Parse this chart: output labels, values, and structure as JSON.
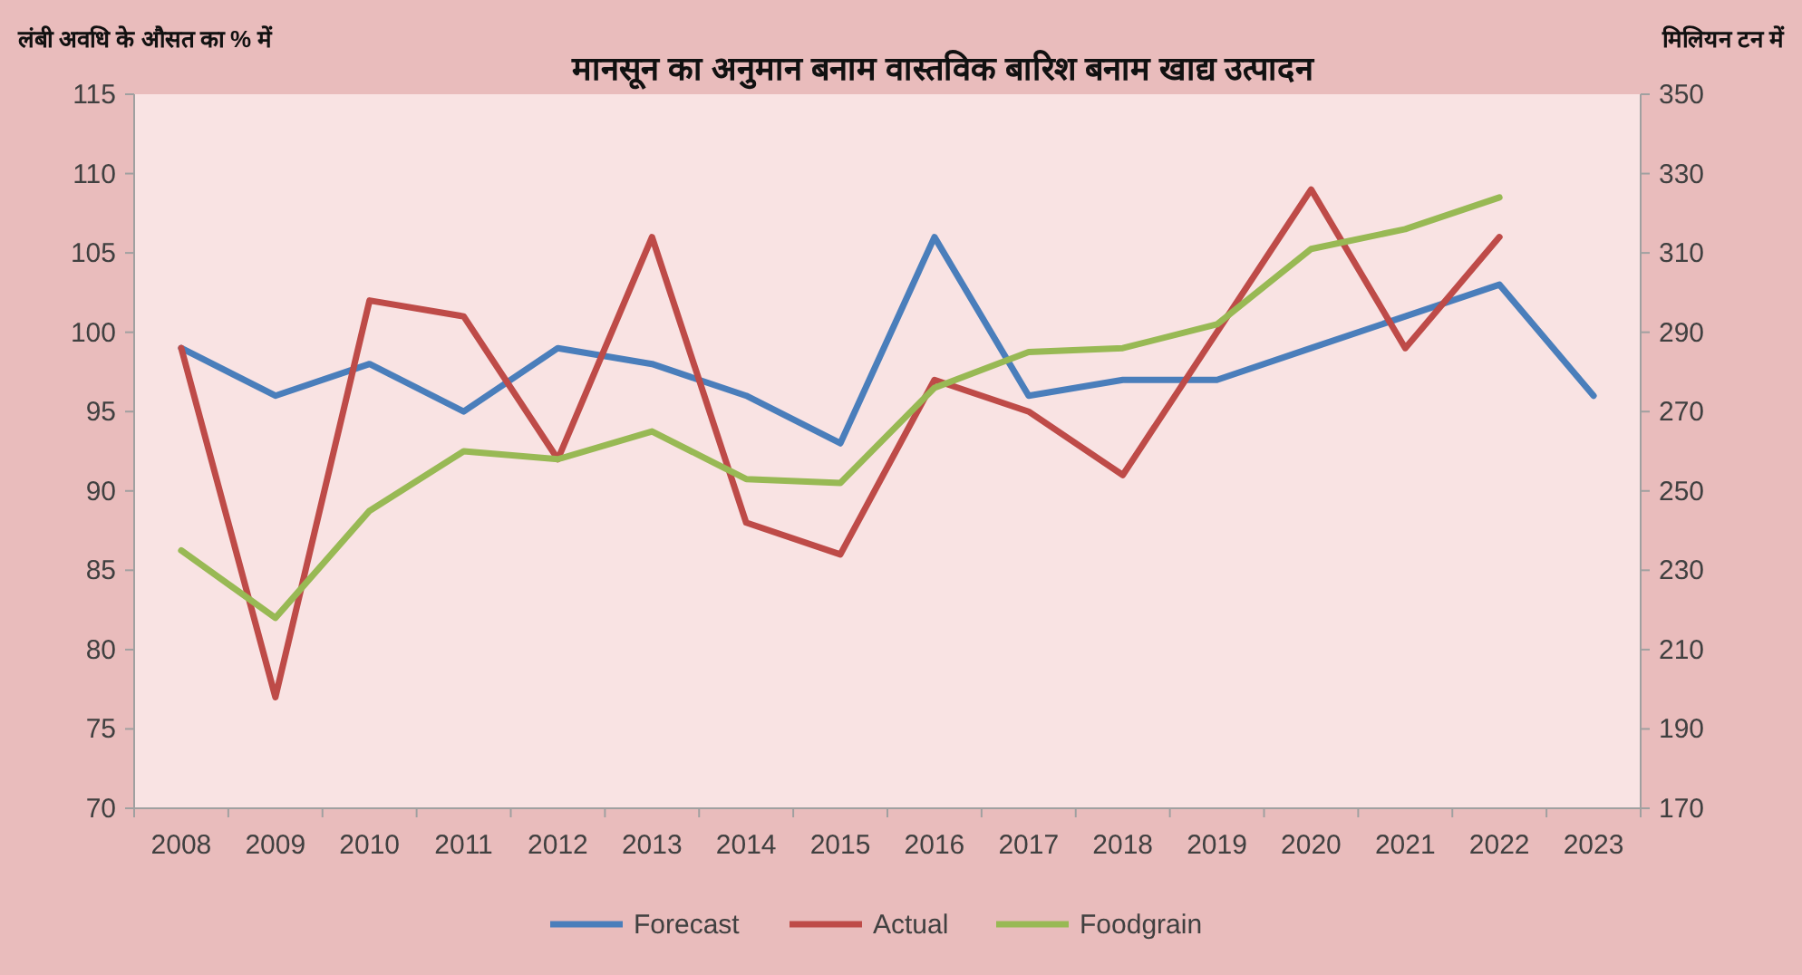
{
  "chart_data": {
    "type": "line",
    "title": "मानसून का अनुमान बनाम वास्तविक बारिश बनाम खाद्य उत्पादन",
    "ylabel": "लंबी अवधि के औसत का % में",
    "y2label": "मिलियन टन में",
    "categories": [
      "2008",
      "2009",
      "2010",
      "2011",
      "2012",
      "2013",
      "2014",
      "2015",
      "2016",
      "2017",
      "2018",
      "2019",
      "2020",
      "2021",
      "2022",
      "2023"
    ],
    "series": [
      {
        "name": "Forecast",
        "color": "#4a7ebb",
        "values": [
          99,
          96,
          98,
          95,
          99,
          98,
          96,
          93,
          106,
          96,
          97,
          97,
          99,
          101,
          103,
          96
        ]
      },
      {
        "name": "Actual",
        "color": "#be4b48",
        "values": [
          99,
          77,
          102,
          101,
          92,
          106,
          88,
          86,
          97,
          95,
          91,
          100,
          109,
          99,
          106,
          null
        ]
      },
      {
        "name": "Foodgrain",
        "color": "#98b954",
        "axis": "y2",
        "values": [
          235,
          218,
          245,
          260,
          258,
          265,
          253,
          252,
          276,
          285,
          286,
          292,
          311,
          316,
          324,
          null
        ]
      }
    ],
    "ylim": [
      70,
      115
    ],
    "yticks": [
      70,
      75,
      80,
      85,
      90,
      95,
      100,
      105,
      110,
      115
    ],
    "y2lim": [
      170,
      350
    ],
    "y2ticks": [
      170,
      190,
      210,
      230,
      250,
      270,
      290,
      310,
      330,
      350
    ],
    "legend": "bottom"
  }
}
